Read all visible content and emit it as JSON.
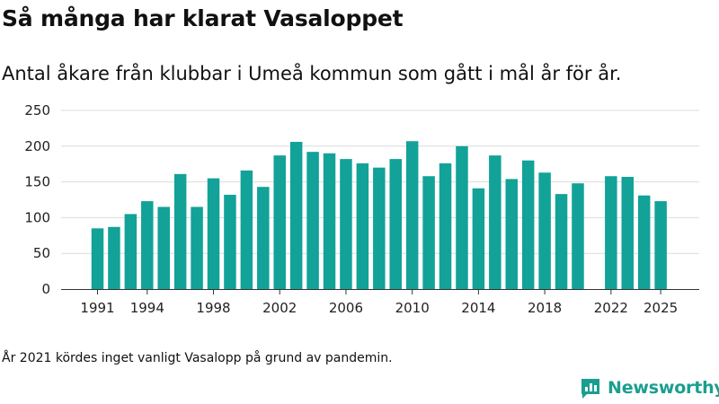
{
  "header": {
    "title": "Så många har klarat Vasaloppet",
    "subtitle": "Antal åkare från klubbar i Umeå kommun som gått i mål år för år."
  },
  "footnote": "År 2021 kördes inget vanligt Vasalopp på grund av pandemin.",
  "brand": {
    "name": "Newsworthy",
    "logo_icon": "bar-chart-logo-icon",
    "color": "#1a9e8f"
  },
  "chart_data": {
    "type": "bar",
    "bar_color": "#12a298",
    "x": [
      1991,
      1992,
      1993,
      1994,
      1995,
      1996,
      1997,
      1998,
      1999,
      2000,
      2001,
      2002,
      2003,
      2004,
      2005,
      2006,
      2007,
      2008,
      2009,
      2010,
      2011,
      2012,
      2013,
      2014,
      2015,
      2016,
      2017,
      2018,
      2019,
      2020,
      2021,
      2022,
      2023,
      2024,
      2025
    ],
    "values": [
      85,
      87,
      105,
      123,
      115,
      161,
      115,
      155,
      132,
      166,
      143,
      187,
      206,
      192,
      190,
      182,
      176,
      170,
      182,
      207,
      158,
      176,
      200,
      141,
      187,
      154,
      180,
      163,
      133,
      148,
      null,
      158,
      157,
      131,
      123
    ],
    "x_tick_labels": [
      "1991",
      "1994",
      "1998",
      "2002",
      "2006",
      "2010",
      "2014",
      "2018",
      "2022",
      "2025"
    ],
    "y_ticks": [
      0,
      50,
      100,
      150,
      200,
      250
    ],
    "ylim": [
      0,
      250
    ],
    "grid": true
  }
}
